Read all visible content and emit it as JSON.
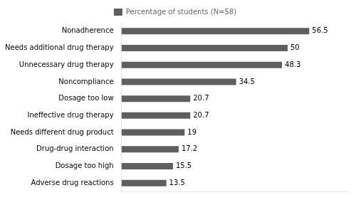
{
  "chart_data": {
    "type": "bar",
    "orientation": "horizontal",
    "categories": [
      "Adverse drug reactions",
      "Dosage too high",
      "Drug-drug interaction",
      "Needs different drug product",
      "Ineffective drug therapy",
      "Dosage too low",
      "Noncompliance",
      "Unnecessary drug therapy",
      "Needs additional drug therapy",
      "Nonadherence"
    ],
    "series": [
      {
        "name": "Percentage of students (N=58)",
        "color": "#5f5f5f",
        "values": [
          13.5,
          15.5,
          17.2,
          19,
          20.7,
          20.7,
          34.5,
          48.3,
          50,
          56.5
        ]
      }
    ],
    "xlim": [
      0,
      68
    ],
    "grid": false,
    "legend": "top",
    "data_labels": true,
    "tick_labels": "y"
  }
}
